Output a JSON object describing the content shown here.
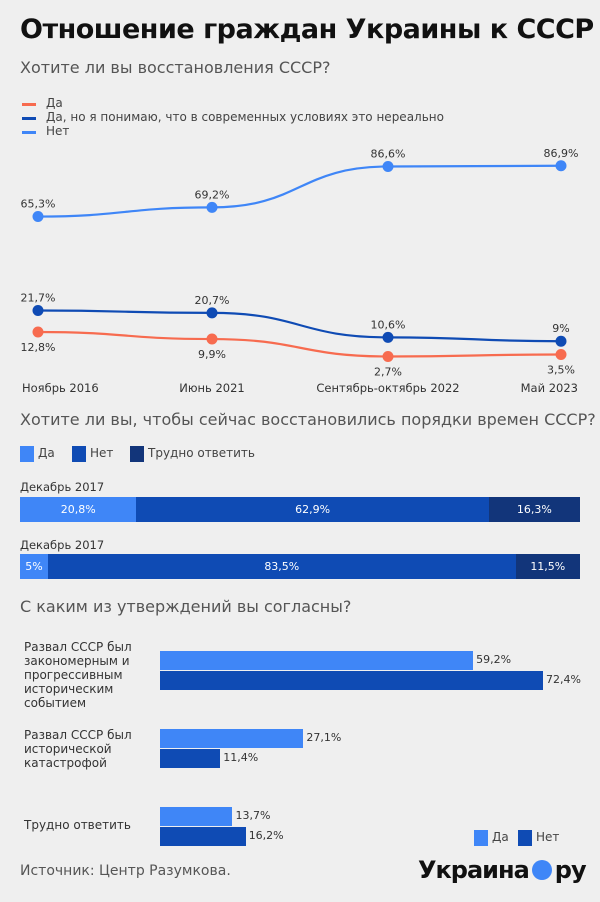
{
  "title": "Отношение граждан Украины к СССР",
  "colors": {
    "light": "#3f86f7",
    "mid": "#0f4bb4",
    "dark": "#12357a",
    "red": "#f76b4f",
    "background": "#efefef"
  },
  "chart_data": [
    {
      "type": "line",
      "title": "Хотите ли вы восстановления СССР?",
      "categories": [
        "Ноябрь 2016",
        "Июнь 2021",
        "Сентябрь-октябрь 2022",
        "Май 2023"
      ],
      "legend_position": "top-left",
      "grid": false,
      "series": [
        {
          "name": "Да",
          "color": "#f76b4f",
          "values": [
            12.8,
            9.9,
            2.7,
            3.5
          ],
          "labels": [
            "12,8%",
            "9,9%",
            "2,7%",
            "3,5%"
          ]
        },
        {
          "name": "Да, но я понимаю, что в современных условиях это нереально",
          "color": "#0f4bb4",
          "values": [
            21.7,
            20.7,
            10.6,
            9
          ],
          "labels": [
            "21,7%",
            "20,7%",
            "10,6%",
            "9%"
          ]
        },
        {
          "name": "Нет",
          "color": "#3f86f7",
          "values": [
            65.3,
            69.2,
            86.6,
            86.9
          ],
          "labels": [
            "65,3%",
            "69,2%",
            "86,6%",
            "86,9%"
          ]
        }
      ]
    },
    {
      "type": "bar",
      "orientation": "horizontal-stacked",
      "title": "Хотите ли вы, чтобы сейчас восстановились порядки времен СССР?",
      "legend": [
        {
          "name": "Да",
          "color": "#3f86f7"
        },
        {
          "name": "Нет",
          "color": "#0f4bb4"
        },
        {
          "name": "Трудно ответить",
          "color": "#12357a"
        }
      ],
      "rows": [
        {
          "label": "Декабрь 2017",
          "values": [
            20.8,
            62.9,
            16.3
          ],
          "labels": [
            "20,8%",
            "62,9%",
            "16,3%"
          ]
        },
        {
          "label": "Декабрь 2017",
          "values": [
            5,
            83.5,
            11.5
          ],
          "labels": [
            "5%",
            "83,5%",
            "11,5%"
          ]
        }
      ]
    },
    {
      "type": "bar",
      "orientation": "horizontal-grouped",
      "title": "С каким из утверждений вы согласны?",
      "legend": [
        {
          "name": "Да",
          "color": "#3f86f7"
        },
        {
          "name": "Нет",
          "color": "#0f4bb4"
        }
      ],
      "legend_position": "bottom-right",
      "groups": [
        {
          "label": "Развал СССР был закономерным и прогрессивным историческим событием",
          "values": [
            59.2,
            72.4
          ],
          "labels": [
            "59,2%",
            "72,4%"
          ]
        },
        {
          "label": "Развал СССР был исторической катастрофой",
          "values": [
            27.1,
            11.4
          ],
          "labels": [
            "27,1%",
            "11,4%"
          ]
        },
        {
          "label": "Трудно ответить",
          "values": [
            13.7,
            16.2
          ],
          "labels": [
            "13,7%",
            "16,2%"
          ]
        }
      ]
    }
  ],
  "source": "Источник: Центр Разумкова.",
  "logo": {
    "left": "Украина",
    "right": "ру"
  }
}
